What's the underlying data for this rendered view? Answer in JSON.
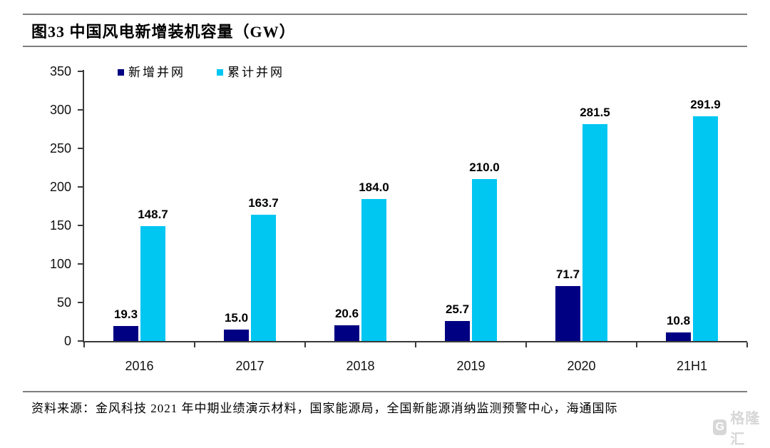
{
  "figure": {
    "title": "图33 中国风电新增装机容量（GW）",
    "source": "资料来源：金风科技 2021 年中期业绩演示材料，国家能源局，全国新能源消纳监测预警中心，海通国际",
    "watermark": {
      "icon": "G",
      "text": "格隆汇"
    }
  },
  "chart_data": {
    "type": "bar",
    "title": "中国风电新增装机容量（GW）",
    "categories": [
      "2016",
      "2017",
      "2018",
      "2019",
      "2020",
      "21H1"
    ],
    "series": [
      {
        "name": "新增并网",
        "color": "#000082",
        "values": [
          19.3,
          15.0,
          20.6,
          25.7,
          71.7,
          10.8
        ]
      },
      {
        "name": "累计并网",
        "color": "#00C6F2",
        "values": [
          148.7,
          163.7,
          184.0,
          210.0,
          281.5,
          291.9
        ]
      }
    ],
    "ylim": [
      0,
      350
    ],
    "ytick_step": 50,
    "ytick_labels": [
      "0",
      "50",
      "100",
      "150",
      "200",
      "250",
      "300",
      "350"
    ],
    "grid": false,
    "legend_position": "top-inside-left",
    "value_labels": true,
    "axis_color": "#3a3a3a",
    "rule_color": "#7f7f7f"
  }
}
